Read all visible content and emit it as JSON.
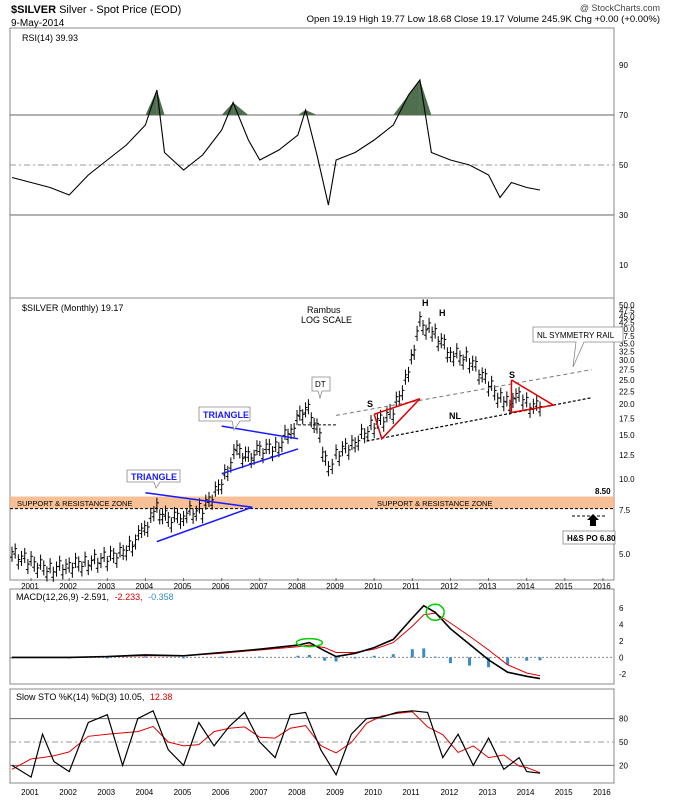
{
  "header": {
    "symbol": "$SILVER",
    "name": "Silver - Spot Price (EOD)",
    "date": "9-May-2014",
    "watermark": "@ StockCharts.com",
    "ohlc_line": "Open 19.19  High 19.77  Low 18.68  Close 19.17  Volume 245.9K  Chg +0.00 (+0.00%)"
  },
  "panels": {
    "rsi_label": "RSI(14) 39.93",
    "price_label": "$SILVER (Monthly) 19.17",
    "macd_label_main": "MACD(12,26,9) -2.591,",
    "macd_label_signal": "-2.233,",
    "macd_label_hist": "-0.358",
    "sto_label_main": "Slow STO %K(14) %D(3) 10.05,",
    "sto_label_signal": "12.38"
  },
  "annotations": {
    "rambus": "Rambus",
    "log_scale": "LOG SCALE",
    "triangle1": "TRIANGLE",
    "triangle2": "TRIANGLE",
    "dt": "DT",
    "nl_rail": "NL SYMMETRY RAIL",
    "nl": "NL",
    "h1": "H",
    "h2": "H",
    "s1": "S",
    "s2": "S",
    "zone_left": "SUPPORT & RESISTANCE ZONE",
    "zone_right": "SUPPORT & RESISTANCE ZONE",
    "level_850": "8.50",
    "hs_po": "H&S PO 6.80"
  },
  "colors": {
    "price_bar": "#000000",
    "triangle_line": "#1a1aff",
    "hs_line": "#e00000",
    "zone_fill": "#f6b98b",
    "macd_hist": "#3b8cc4",
    "signal": "#e00000",
    "overbought_fill": "#4f6f4f",
    "highlight": "#00cc00"
  },
  "chart_data": [
    {
      "type": "line",
      "title": "RSI(14) 39.93",
      "ylim": [
        0,
        100
      ],
      "y_ticks": [
        10,
        30,
        50,
        70,
        90
      ],
      "reference_lines": [
        30,
        50,
        70
      ],
      "x": [
        2000.5,
        2001,
        2001.5,
        2002,
        2002.5,
        2003,
        2003.5,
        2004,
        2004.3,
        2004.5,
        2005,
        2005.5,
        2006,
        2006.3,
        2006.7,
        2007,
        2007.5,
        2008,
        2008.2,
        2008.5,
        2008.8,
        2009,
        2009.5,
        2010,
        2010.5,
        2010.9,
        2011.2,
        2011.5,
        2012,
        2012.5,
        2013,
        2013.3,
        2013.6,
        2014,
        2014.35
      ],
      "y": [
        45,
        43,
        41,
        38,
        46,
        52,
        58,
        66,
        80,
        55,
        48,
        54,
        64,
        75,
        60,
        52,
        56,
        62,
        72,
        54,
        34,
        52,
        55,
        60,
        66,
        78,
        84,
        55,
        52,
        50,
        46,
        37,
        43,
        41,
        40
      ]
    },
    {
      "type": "bar",
      "title": "$SILVER (Monthly) 19.17",
      "log_scale": true,
      "ylim": [
        4,
        50
      ],
      "y_ticks": [
        5.0,
        7.5,
        10.0,
        12.5,
        15.0,
        17.5,
        20.0,
        22.5,
        25.0,
        27.5,
        30.0,
        32.5,
        35.0,
        37.5,
        40.0,
        42.5,
        45.0,
        47.5,
        50.0
      ],
      "x_ticks": [
        "2001",
        "2002",
        "2003",
        "2004",
        "2005",
        "2006",
        "2007",
        "2008",
        "2009",
        "2010",
        "2011",
        "2012",
        "2013",
        "2014",
        "2015",
        "2016"
      ],
      "x": [
        2000.5,
        2001,
        2001.5,
        2002,
        2002.5,
        2003,
        2003.5,
        2003.9,
        2004.3,
        2004.6,
        2005,
        2005.5,
        2006,
        2006.4,
        2006.7,
        2007,
        2007.5,
        2007.9,
        2008.2,
        2008.5,
        2008.8,
        2009,
        2009.5,
        2010,
        2010.5,
        2010.9,
        2011.2,
        2011.6,
        2012,
        2012.5,
        2013,
        2013.4,
        2013.8,
        2014,
        2014.35
      ],
      "y": [
        5.0,
        4.6,
        4.3,
        4.5,
        4.6,
        4.8,
        5.1,
        6.0,
        7.5,
        6.8,
        7.2,
        7.5,
        9.5,
        13.0,
        12.0,
        13.0,
        13.5,
        16.5,
        19.5,
        16.0,
        10.5,
        12.5,
        14.0,
        16.5,
        18.5,
        26.0,
        42.0,
        38.0,
        32.0,
        30.0,
        24.0,
        20.0,
        21.0,
        20.0,
        19.17
      ],
      "support_zone": [
        7.6,
        8.5
      ],
      "price_objective": 6.8
    },
    {
      "type": "line",
      "title": "MACD(12,26,9) -2.591, -2.233, -0.358",
      "ylim": [
        -3,
        7
      ],
      "y_ticks": [
        -2,
        0,
        2,
        4,
        6
      ],
      "x": [
        2000.5,
        2002,
        2003,
        2004,
        2005,
        2006,
        2007,
        2008,
        2008.3,
        2008.7,
        2009,
        2009.5,
        2010,
        2010.5,
        2011,
        2011.3,
        2011.6,
        2012,
        2012.5,
        2013,
        2013.5,
        2014,
        2014.35
      ],
      "y": [
        0,
        0,
        0.1,
        0.3,
        0.2,
        0.6,
        1.0,
        1.5,
        1.8,
        0.8,
        0.1,
        0.5,
        1.2,
        2.2,
        4.8,
        6.3,
        5.5,
        3.5,
        1.6,
        -0.3,
        -1.8,
        -2.3,
        -2.59
      ],
      "signal": [
        0,
        0,
        0.1,
        0.2,
        0.2,
        0.5,
        0.9,
        1.3,
        1.5,
        1.2,
        0.6,
        0.6,
        1.0,
        1.8,
        3.8,
        5.2,
        5.4,
        4.2,
        2.6,
        0.9,
        -0.9,
        -1.9,
        -2.23
      ]
    },
    {
      "type": "line",
      "title": "Slow STO %K(14) %D(3) 10.05, 12.38",
      "ylim": [
        0,
        100
      ],
      "y_ticks": [
        20,
        50,
        80
      ],
      "x": [
        2000.5,
        2001,
        2001.3,
        2001.6,
        2002,
        2002.5,
        2003,
        2003.4,
        2003.8,
        2004.2,
        2004.6,
        2005,
        2005.4,
        2005.8,
        2006.2,
        2006.6,
        2007,
        2007.4,
        2007.8,
        2008.2,
        2008.6,
        2009,
        2009.4,
        2009.8,
        2010.2,
        2010.6,
        2011,
        2011.4,
        2011.8,
        2012.2,
        2012.6,
        2013,
        2013.4,
        2013.8,
        2014,
        2014.35
      ],
      "y": [
        20,
        5,
        60,
        25,
        12,
        75,
        85,
        20,
        80,
        90,
        40,
        20,
        75,
        45,
        70,
        88,
        50,
        30,
        85,
        88,
        40,
        8,
        60,
        80,
        82,
        88,
        90,
        88,
        30,
        60,
        20,
        55,
        15,
        30,
        12,
        10.05
      ]
    }
  ]
}
